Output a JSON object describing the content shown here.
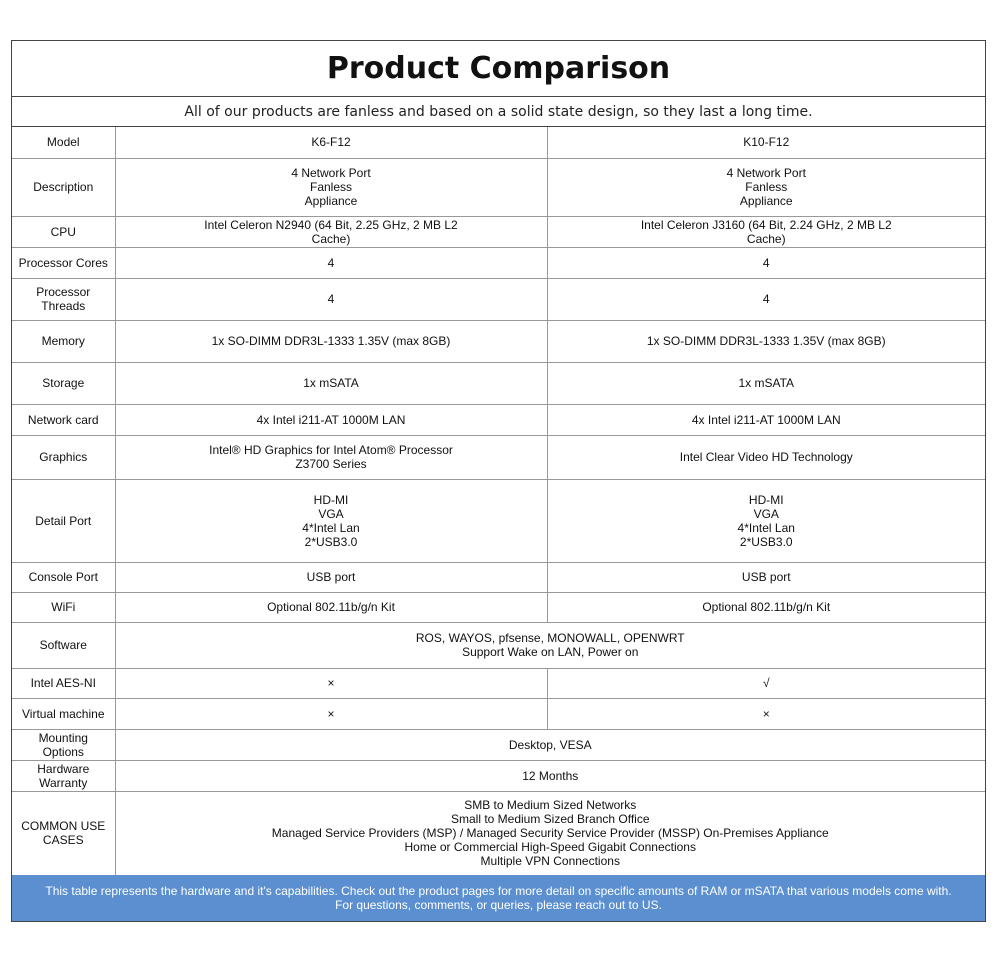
{
  "title": "Product Comparison",
  "subtitle": "All of our products are fanless and based on a solid state design, so they last a long time.",
  "columns": [
    "Model",
    "K6-F12",
    "K10-F12"
  ],
  "rows": [
    {
      "label": "Description",
      "values": [
        "4 Network Port\nFanless\nAppliance",
        "4 Network Port\nFanless\nAppliance"
      ]
    },
    {
      "label": "CPU",
      "values": [
        "Intel Celeron N2940 (64 Bit, 2.25 GHz, 2 MB L2\nCache)",
        "Intel Celeron J3160 (64 Bit, 2.24 GHz, 2 MB L2\nCache)"
      ]
    },
    {
      "label": "Processor Cores",
      "values": [
        "4",
        "4"
      ]
    },
    {
      "label": "Processor\nThreads",
      "values": [
        "4",
        "4"
      ]
    },
    {
      "label": "Memory",
      "values": [
        "1x SO-DIMM DDR3L-1333 1.35V (max 8GB)",
        "1x SO-DIMM DDR3L-1333 1.35V (max 8GB)"
      ]
    },
    {
      "label": "Storage",
      "values": [
        "1x mSATA",
        "1x mSATA"
      ]
    },
    {
      "label": "Network card",
      "values": [
        "4x Intel i211-AT 1000M LAN",
        "4x Intel i211-AT 1000M LAN"
      ]
    },
    {
      "label": "Graphics",
      "values": [
        "Intel® HD Graphics for Intel Atom® Processor\nZ3700 Series",
        "Intel Clear Video HD Technology"
      ]
    },
    {
      "label": "Detail Port",
      "values": [
        "HD-MI\nVGA\n4*Intel Lan\n2*USB3.0",
        "HD-MI\nVGA\n4*Intel Lan\n2*USB3.0"
      ]
    },
    {
      "label": "Console Port",
      "values": [
        "USB port",
        "USB port"
      ]
    },
    {
      "label": "WiFi",
      "values": [
        "Optional 802.11b/g/n Kit",
        "Optional 802.11b/g/n Kit"
      ]
    },
    {
      "label": "Software",
      "merged": "ROS, WAYOS, pfsense, MONOWALL, OPENWRT\nSupport Wake on LAN, Power on"
    },
    {
      "label": "Intel AES-NI",
      "values": [
        "×",
        "√"
      ]
    },
    {
      "label": "Virtual machine",
      "values": [
        "×",
        "×"
      ]
    },
    {
      "label": "Mounting\nOptions",
      "merged": "Desktop, VESA"
    },
    {
      "label": "Hardware\nWarranty",
      "merged": "12 Months"
    },
    {
      "label": "COMMON USE\nCASES",
      "merged": "SMB to Medium Sized Networks\nSmall to Medium Sized Branch Office\nManaged Service Providers (MSP) / Managed Security Service Provider (MSSP) On-Premises Appliance\nHome or Commercial High-Speed Gigabit Connections\nMultiple VPN Connections"
    }
  ],
  "footer": "This table represents the hardware and it's capabilities.  Check out the product pages for more detail on specific amounts of RAM or mSATA that various models come with.\nFor questions, comments, or queries, please reach out to US.",
  "colors": {
    "footer_bg": "#5b8fd0",
    "border": "#999999",
    "text": "#111111"
  }
}
